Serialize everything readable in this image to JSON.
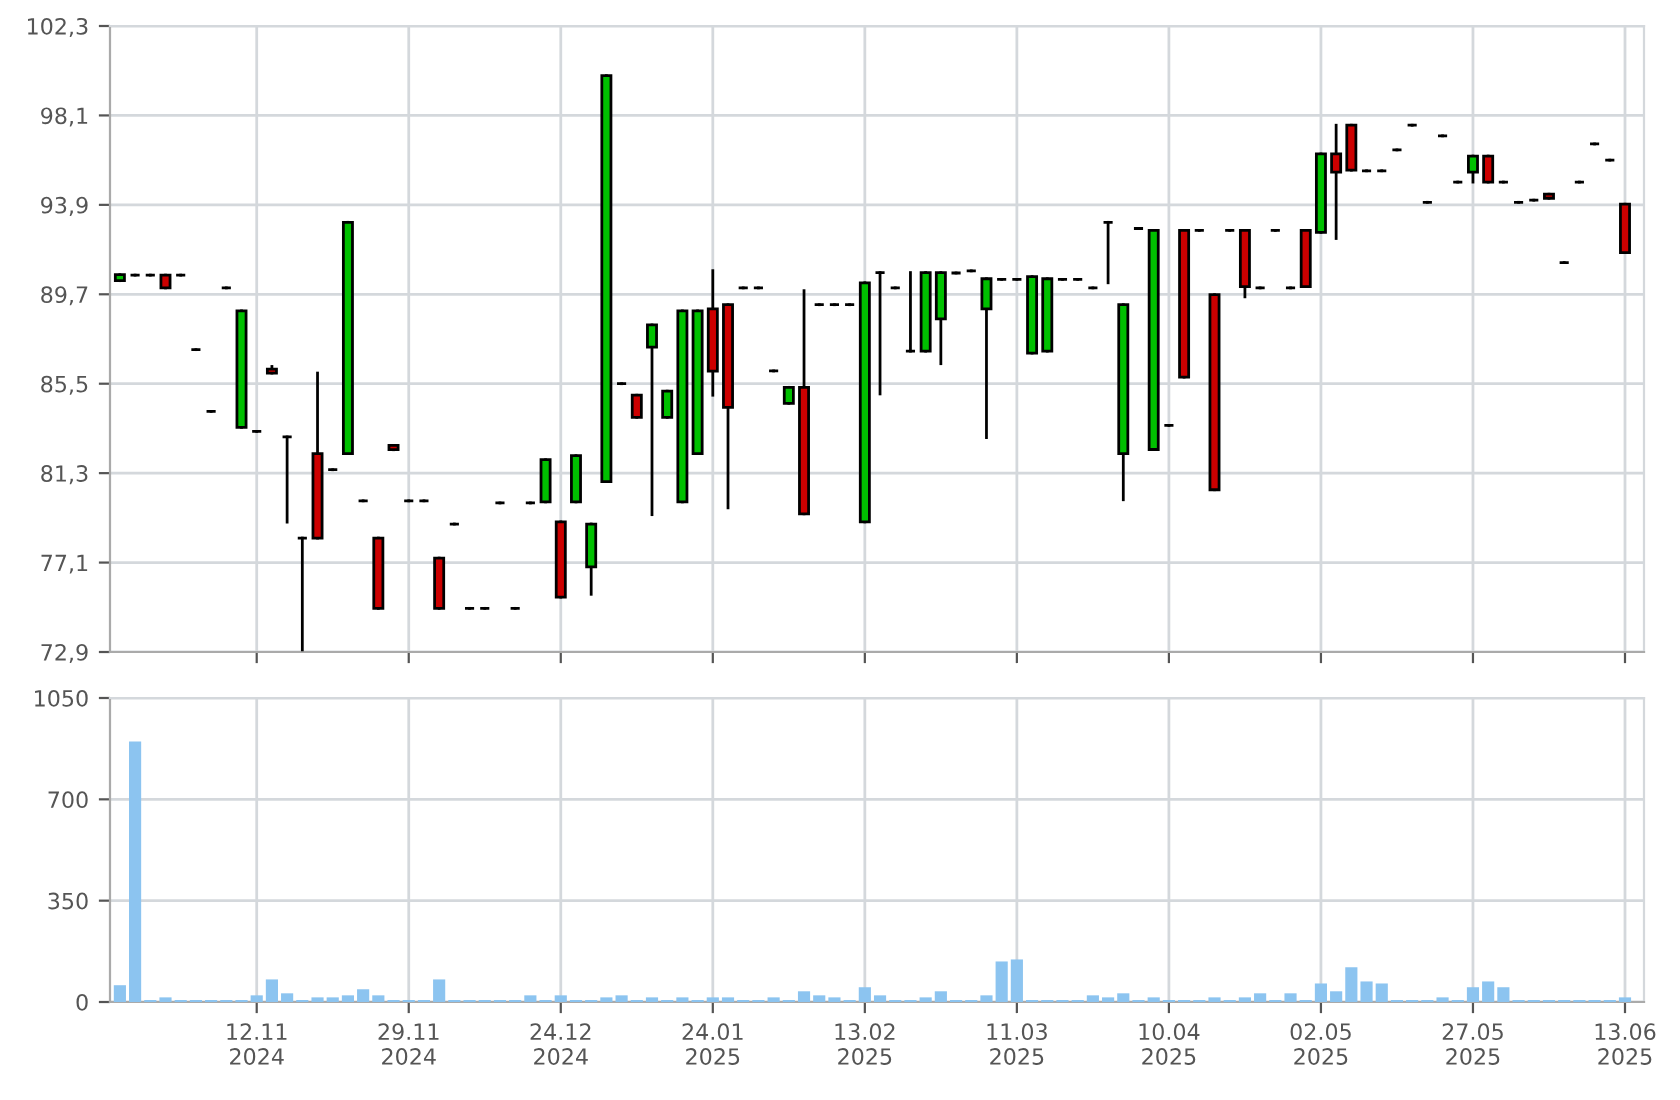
{
  "chart_data": [
    {
      "type": "candlestick",
      "tick_labels": "y",
      "grid": true,
      "categories": [
        null,
        null,
        null,
        null,
        null,
        null,
        null,
        null,
        null,
        null,
        null,
        null,
        null,
        null,
        null,
        null,
        null,
        null,
        null,
        null,
        null,
        null,
        null,
        null,
        null,
        null,
        null,
        null,
        null,
        null,
        null,
        null,
        null,
        null,
        null,
        null,
        null,
        null,
        null,
        null,
        null,
        null,
        null,
        null,
        null,
        null,
        null,
        null,
        null,
        null,
        null,
        null,
        null,
        null,
        null,
        null,
        null,
        null,
        null,
        null,
        null,
        null,
        null,
        null,
        null,
        null,
        null,
        null,
        null,
        null,
        null,
        null,
        null,
        null,
        null,
        null,
        null,
        null,
        null,
        null,
        null,
        null,
        null,
        null,
        null,
        null,
        null,
        null,
        null,
        null,
        null,
        null,
        null,
        null,
        null,
        null,
        null,
        null,
        null,
        null
      ],
      "ylim": [
        72.9,
        102.3
      ],
      "yticks": [
        {
          "value": 72.9,
          "label": "72,9"
        },
        {
          "value": 77.1,
          "label": "77,1"
        },
        {
          "value": 81.3,
          "label": "81,3"
        },
        {
          "value": 85.5,
          "label": "85,5"
        },
        {
          "value": 89.7,
          "label": "89,7"
        },
        {
          "value": 93.9,
          "label": "93,9"
        },
        {
          "value": 98.1,
          "label": "98,1"
        },
        {
          "value": 102.3,
          "label": "102,3"
        }
      ],
      "ohlc": [
        [
          90.34,
          90.62,
          90.34,
          90.62
        ],
        [
          90.6,
          90.6,
          90.6,
          90.6
        ],
        [
          90.6,
          90.6,
          90.6,
          90.6
        ],
        [
          90.6,
          90.6,
          90.0,
          90.0
        ],
        [
          90.6,
          90.6,
          90.6,
          90.6
        ],
        [
          87.1,
          87.1,
          87.1,
          87.1
        ],
        [
          84.2,
          84.2,
          84.2,
          84.2
        ],
        [
          90.0,
          90.0,
          90.0,
          90.0
        ],
        [
          83.45,
          88.92,
          83.45,
          88.92
        ],
        [
          83.26,
          83.26,
          83.26,
          83.26
        ],
        [
          86.18,
          86.31,
          86.0,
          86.0
        ],
        [
          83.0,
          83.0,
          79.0,
          83.0
        ],
        [
          78.25,
          78.25,
          73.0,
          78.25
        ],
        [
          82.22,
          86.0,
          78.25,
          78.25
        ],
        [
          81.46,
          81.46,
          81.46,
          81.46
        ],
        [
          82.22,
          93.08,
          82.22,
          93.08
        ],
        [
          80.0,
          80.0,
          80.0,
          80.0
        ],
        [
          78.25,
          78.25,
          74.95,
          74.95
        ],
        [
          82.6,
          82.6,
          82.4,
          82.4
        ],
        [
          80.0,
          80.0,
          80.0,
          80.0
        ],
        [
          80.0,
          80.0,
          80.0,
          80.0
        ],
        [
          77.31,
          77.31,
          74.95,
          74.95
        ],
        [
          78.91,
          78.91,
          78.91,
          78.91
        ],
        [
          74.95,
          74.95,
          74.95,
          74.95
        ],
        [
          74.95,
          74.95,
          74.95,
          74.95
        ],
        [
          79.9,
          79.9,
          79.9,
          79.9
        ],
        [
          74.95,
          74.95,
          74.95,
          74.95
        ],
        [
          79.9,
          79.9,
          79.9,
          79.9
        ],
        [
          79.95,
          81.93,
          79.95,
          81.93
        ],
        [
          79.01,
          79.01,
          75.48,
          75.48
        ],
        [
          79.95,
          82.12,
          79.95,
          82.12
        ],
        [
          76.9,
          78.91,
          75.61,
          78.91
        ],
        [
          80.9,
          99.97,
          80.9,
          99.97
        ],
        [
          85.5,
          85.5,
          85.5,
          85.5
        ],
        [
          84.96,
          84.96,
          83.92,
          83.92
        ],
        [
          87.22,
          88.26,
          79.35,
          88.26
        ],
        [
          83.92,
          85.15,
          83.92,
          85.15
        ],
        [
          79.95,
          88.92,
          79.95,
          88.92
        ],
        [
          82.22,
          88.92,
          82.22,
          88.92
        ],
        [
          89.02,
          90.81,
          84.96,
          86.09
        ],
        [
          89.21,
          89.21,
          79.67,
          84.39
        ],
        [
          90.0,
          90.0,
          90.0,
          90.0
        ],
        [
          90.0,
          90.0,
          90.0,
          90.0
        ],
        [
          86.1,
          86.1,
          86.1,
          86.1
        ],
        [
          84.58,
          85.33,
          84.58,
          85.33
        ],
        [
          85.33,
          89.87,
          79.39,
          79.39
        ],
        [
          89.21,
          89.21,
          89.21,
          89.21
        ],
        [
          89.21,
          89.21,
          89.21,
          89.21
        ],
        [
          89.21,
          89.21,
          89.21,
          89.21
        ],
        [
          79.01,
          90.24,
          79.01,
          90.24
        ],
        [
          90.72,
          90.72,
          85.02,
          90.72
        ],
        [
          90.0,
          90.0,
          90.0,
          90.0
        ],
        [
          87.03,
          90.72,
          87.03,
          87.03
        ],
        [
          87.03,
          90.72,
          87.03,
          90.72
        ],
        [
          88.54,
          90.72,
          86.44,
          90.72
        ],
        [
          90.7,
          90.7,
          90.7,
          90.7
        ],
        [
          90.8,
          90.8,
          90.8,
          90.8
        ],
        [
          89.02,
          90.43,
          82.97,
          90.43
        ],
        [
          90.4,
          90.4,
          90.4,
          90.4
        ],
        [
          90.4,
          90.4,
          90.4,
          90.4
        ],
        [
          86.94,
          90.53,
          86.94,
          90.53
        ],
        [
          87.03,
          90.43,
          87.03,
          90.43
        ],
        [
          90.4,
          90.4,
          90.4,
          90.4
        ],
        [
          90.4,
          90.4,
          90.4,
          90.4
        ],
        [
          90.0,
          90.0,
          90.0,
          90.0
        ],
        [
          93.08,
          93.08,
          90.24,
          93.08
        ],
        [
          82.22,
          89.21,
          80.05,
          89.21
        ],
        [
          92.79,
          92.79,
          92.79,
          92.79
        ],
        [
          82.41,
          92.7,
          82.41,
          92.7
        ],
        [
          83.54,
          83.54,
          83.54,
          83.54
        ],
        [
          92.7,
          92.7,
          85.81,
          85.81
        ],
        [
          92.7,
          92.7,
          92.7,
          92.7
        ],
        [
          89.68,
          89.68,
          80.52,
          80.52
        ],
        [
          92.7,
          92.7,
          92.7,
          92.7
        ],
        [
          92.7,
          92.7,
          89.58,
          90.06
        ],
        [
          90.0,
          90.0,
          90.0,
          90.0
        ],
        [
          92.7,
          92.7,
          92.7,
          92.7
        ],
        [
          90.0,
          90.0,
          90.0,
          90.0
        ],
        [
          92.7,
          92.7,
          90.06,
          90.06
        ],
        [
          92.61,
          96.29,
          92.61,
          96.29
        ],
        [
          96.29,
          97.64,
          92.32,
          95.44
        ],
        [
          97.64,
          97.64,
          95.53,
          95.53
        ],
        [
          95.5,
          95.5,
          95.5,
          95.5
        ],
        [
          95.5,
          95.5,
          95.5,
          95.5
        ],
        [
          96.48,
          96.48,
          96.48,
          96.48
        ],
        [
          97.64,
          97.64,
          97.64,
          97.64
        ],
        [
          94.02,
          94.02,
          94.02,
          94.02
        ],
        [
          97.14,
          97.14,
          97.14,
          97.14
        ],
        [
          94.97,
          94.97,
          94.97,
          94.97
        ],
        [
          95.44,
          96.19,
          94.97,
          96.19
        ],
        [
          96.19,
          96.19,
          94.97,
          94.97
        ],
        [
          94.97,
          94.97,
          94.97,
          94.97
        ],
        [
          94.02,
          94.02,
          94.02,
          94.02
        ],
        [
          94.12,
          94.12,
          94.12,
          94.12
        ],
        [
          94.4,
          94.4,
          94.21,
          94.21
        ],
        [
          91.19,
          91.19,
          91.19,
          91.19
        ],
        [
          94.97,
          94.97,
          94.97,
          94.97
        ],
        [
          96.76,
          96.76,
          96.76,
          96.76
        ],
        [
          96.0,
          96.0,
          96.0,
          96.0
        ],
        [
          93.93,
          93.93,
          91.66,
          91.66
        ]
      ],
      "colors": [
        "#00c000",
        "#000000",
        "#000000",
        "#cc0000",
        "#000000",
        "#000000",
        "#000000",
        "#000000",
        "#00c000",
        "#000000",
        "#cc0000",
        "#000000",
        "#000000",
        "#cc0000",
        "#000000",
        "#00c000",
        "#000000",
        "#cc0000",
        "#cc0000",
        "#000000",
        "#000000",
        "#cc0000",
        "#000000",
        "#000000",
        "#000000",
        "#000000",
        "#000000",
        "#000000",
        "#00c000",
        "#cc0000",
        "#00c000",
        "#00c000",
        "#00c000",
        "#000000",
        "#cc0000",
        "#00c000",
        "#00c000",
        "#00c000",
        "#00c000",
        "#cc0000",
        "#cc0000",
        "#000000",
        "#000000",
        "#000000",
        "#00c000",
        "#cc0000",
        "#000000",
        "#000000",
        "#000000",
        "#00c000",
        "#000000",
        "#000000",
        "#000000",
        "#00c000",
        "#00c000",
        "#000000",
        "#000000",
        "#00c000",
        "#000000",
        "#000000",
        "#00c000",
        "#00c000",
        "#000000",
        "#000000",
        "#000000",
        "#000000",
        "#00c000",
        "#000000",
        "#00c000",
        "#000000",
        "#cc0000",
        "#000000",
        "#cc0000",
        "#000000",
        "#cc0000",
        "#000000",
        "#000000",
        "#000000",
        "#cc0000",
        "#00c000",
        "#cc0000",
        "#cc0000",
        "#000000",
        "#000000",
        "#000000",
        "#000000",
        "#000000",
        "#000000",
        "#000000",
        "#00c000",
        "#cc0000",
        "#000000",
        "#000000",
        "#000000",
        "#cc0000",
        "#000000",
        "#000000",
        "#000000",
        "#000000",
        "#cc0000"
      ]
    },
    {
      "type": "bar",
      "grid": true,
      "color": "#8cc4f0",
      "categories": [
        null,
        null,
        null,
        null,
        null,
        null,
        null,
        null,
        null,
        "12.11\n2024",
        null,
        null,
        null,
        null,
        null,
        null,
        null,
        null,
        null,
        "29.11\n2024",
        null,
        null,
        null,
        null,
        null,
        null,
        null,
        null,
        null,
        "24.12\n2024",
        null,
        null,
        null,
        null,
        null,
        null,
        null,
        null,
        null,
        "24.01\n2025",
        null,
        null,
        null,
        null,
        null,
        null,
        null,
        null,
        null,
        "13.02\n2025",
        null,
        null,
        null,
        null,
        null,
        null,
        null,
        null,
        null,
        "11.03\n2025",
        null,
        null,
        null,
        null,
        null,
        null,
        null,
        null,
        null,
        "10.04\n2025",
        null,
        null,
        null,
        null,
        null,
        null,
        null,
        null,
        null,
        "02.05\n2025",
        null,
        null,
        null,
        null,
        null,
        null,
        null,
        null,
        null,
        "27.05\n2025",
        null,
        null,
        null,
        null,
        null,
        null,
        null,
        null,
        null,
        "13.06\n2025"
      ],
      "ylim": [
        0,
        1050
      ],
      "yticks": [
        0,
        350,
        700,
        1050
      ],
      "values": [
        58,
        900,
        7,
        16,
        7,
        7,
        7,
        7,
        7,
        23,
        78,
        30,
        7,
        16,
        16,
        23,
        44,
        23,
        7,
        7,
        7,
        78,
        7,
        7,
        7,
        7,
        7,
        23,
        7,
        23,
        7,
        7,
        16,
        23,
        7,
        16,
        7,
        16,
        7,
        16,
        16,
        7,
        7,
        16,
        7,
        37,
        23,
        16,
        7,
        51,
        23,
        7,
        7,
        16,
        37,
        7,
        7,
        23,
        140,
        147,
        7,
        7,
        7,
        7,
        23,
        16,
        30,
        7,
        16,
        7,
        7,
        7,
        16,
        7,
        16,
        30,
        7,
        30,
        7,
        64,
        37,
        120,
        71,
        64,
        7,
        7,
        7,
        16,
        7,
        51,
        71,
        51,
        7,
        7,
        7,
        7,
        7,
        7,
        7,
        16
      ]
    }
  ]
}
